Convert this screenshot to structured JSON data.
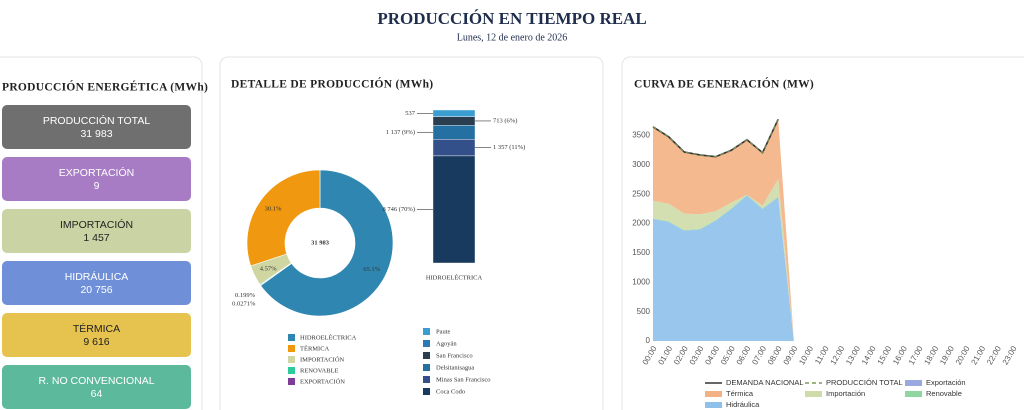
{
  "header": {
    "title": "PRODUCCIÓN EN TIEMPO REAL",
    "date": "Lunes, 12 de enero de 2026"
  },
  "cards_panel": {
    "title": "PRODUCCIÓN ENERGÉTICA (MWh)",
    "cards": [
      {
        "label": "PRODUCCIÓN TOTAL",
        "value": "31 983",
        "color": "#6f6f6f"
      },
      {
        "label": "EXPORTACIÓN",
        "value": "9",
        "color": "#a77cc5"
      },
      {
        "label": "IMPORTACIÓN",
        "value": "1 457",
        "color": "#cad3a3"
      },
      {
        "label": "HIDRÁULICA",
        "value": "20 756",
        "color": "#6f90d8"
      },
      {
        "label": "TÉRMICA",
        "value": "9 616",
        "color": "#e6c24f"
      },
      {
        "label": "R. NO CONVENCIONAL",
        "value": "64",
        "color": "#5db99b"
      }
    ]
  },
  "chart_data": [
    {
      "type": "pie",
      "title": "DETALLE DE PRODUCCIÓN (MWh)",
      "center_label": "31 983",
      "categories": [
        "HIDROELÉCTRICA",
        "TÉRMICA",
        "IMPORTACIÓN",
        "RENOVABLE",
        "EXPORTACIÓN"
      ],
      "values": [
        65.1,
        30.1,
        4.57,
        0.199,
        0.0271
      ],
      "value_labels": [
        "65.1%",
        "30.1%",
        "4.57%",
        "0.199%",
        "0.0271%"
      ],
      "colors": [
        "#2f87b1",
        "#f0980f",
        "#cfd6a2",
        "#2ecc9c",
        "#7d3c98"
      ]
    },
    {
      "type": "bar",
      "stacked": true,
      "categories": [
        "HIDROELÉCTRICA"
      ],
      "series": [
        {
          "name": "Paute",
          "color": "#3a9fd0",
          "values": [
            537
          ],
          "value_labels": [
            "537"
          ]
        },
        {
          "name": "Agoyán",
          "color": "#2a7ab8",
          "values": [
            0
          ]
        },
        {
          "name": "San Francisco",
          "color": "#2b3e50",
          "values": [
            713
          ],
          "value_labels": [
            "713 (6%)"
          ]
        },
        {
          "name": "Delsitanisagua",
          "color": "#2470a2",
          "values": [
            1137
          ],
          "value_labels": [
            "1 137 (9%)"
          ]
        },
        {
          "name": "Minas San Francisco",
          "color": "#34508a",
          "values": [
            1357
          ],
          "value_labels": [
            "1 357 (11%)"
          ]
        },
        {
          "name": "Coca Codo",
          "color": "#173a5e",
          "values": [
            8746
          ],
          "value_labels": [
            "8 746 (70%)"
          ]
        }
      ]
    },
    {
      "type": "area",
      "title": "CURVA DE GENERACIÓN (MW)",
      "x": [
        "00:00",
        "01:00",
        "02:00",
        "03:00",
        "04:00",
        "05:00",
        "06:00",
        "07:00",
        "08:00",
        "09:00",
        "10:00",
        "11:00",
        "12:00",
        "13:00",
        "14:00",
        "15:00",
        "16:00",
        "17:00",
        "18:00",
        "19:00",
        "20:00",
        "21:00",
        "22:00",
        "23:00"
      ],
      "ylim": [
        0,
        3800
      ],
      "yticks": [
        0,
        500,
        1000,
        1500,
        2000,
        2500,
        3000,
        3500
      ],
      "series": [
        {
          "name": "DEMANDA NACIONAL",
          "style": "line",
          "color": "#333333",
          "values": [
            3650,
            3480,
            3220,
            3170,
            3140,
            3250,
            3430,
            3210,
            3780,
            null,
            null,
            null,
            null,
            null,
            null,
            null,
            null,
            null,
            null,
            null,
            null,
            null,
            null,
            null
          ]
        },
        {
          "name": "PRODUCCIÓN TOTAL",
          "style": "dashed",
          "color": "#7a9a5a",
          "values": [
            3650,
            3480,
            3220,
            3170,
            3140,
            3250,
            3430,
            3210,
            3780,
            null,
            null,
            null,
            null,
            null,
            null,
            null,
            null,
            null,
            null,
            null,
            null,
            null,
            null,
            null
          ]
        },
        {
          "name": "Exportación",
          "style": "area",
          "color": "#9aa8e0",
          "values": [
            1,
            1,
            1,
            1,
            1,
            1,
            1,
            1,
            1,
            0,
            null,
            null,
            null,
            null,
            null,
            null,
            null,
            null,
            null,
            null,
            null,
            null,
            null,
            null
          ]
        },
        {
          "name": "Térmica",
          "style": "area",
          "color": "#f4b183",
          "values": [
            1260,
            1140,
            1050,
            1010,
            930,
            890,
            940,
            900,
            1020,
            0,
            null,
            null,
            null,
            null,
            null,
            null,
            null,
            null,
            null,
            null,
            null,
            null,
            null,
            null
          ]
        },
        {
          "name": "Importación",
          "style": "area",
          "color": "#cfdba8",
          "values": [
            300,
            300,
            280,
            250,
            150,
            100,
            0,
            50,
            300,
            0,
            null,
            null,
            null,
            null,
            null,
            null,
            null,
            null,
            null,
            null,
            null,
            null,
            null,
            null
          ]
        },
        {
          "name": "Renovable",
          "style": "area",
          "color": "#8fd6a0",
          "values": [
            10,
            10,
            10,
            10,
            10,
            10,
            10,
            10,
            10,
            0,
            null,
            null,
            null,
            null,
            null,
            null,
            null,
            null,
            null,
            null,
            null,
            null,
            null,
            null
          ]
        },
        {
          "name": "Hidráulica",
          "style": "area",
          "color": "#8ec0ea",
          "values": [
            2080,
            2030,
            1880,
            1900,
            2050,
            2250,
            2480,
            2250,
            2450,
            0,
            null,
            null,
            null,
            null,
            null,
            null,
            null,
            null,
            null,
            null,
            null,
            null,
            null,
            null
          ]
        }
      ]
    }
  ]
}
